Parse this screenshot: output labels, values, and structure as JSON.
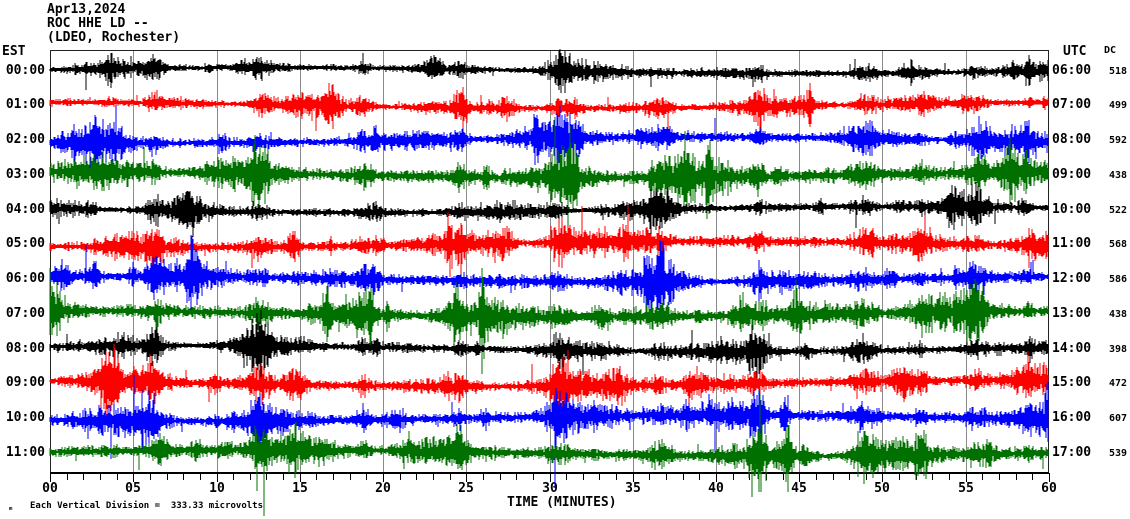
{
  "header": {
    "date": "Apr13,2024",
    "station": "ROC HHE LD --",
    "network": "(LDEO, Rochester)"
  },
  "axes": {
    "left_header": "EST",
    "right_header": "UTC",
    "dc_header": "DC",
    "xlabel": "TIME (MINUTES)"
  },
  "footer": {
    "glyph": "ₘ",
    "scale_note": "Each Vertical Division =  333.33 microvolts"
  },
  "chart_data": {
    "type": "helicorder-seismogram",
    "title": "Apr13,2024",
    "station": "ROC HHE LD --",
    "location": "(LDEO, Rochester)",
    "xlabel": "TIME (MINUTES)",
    "x_range_minutes": [
      0,
      60
    ],
    "x_ticks": [
      {
        "m": 0,
        "label": "00"
      },
      {
        "m": 5,
        "label": "05"
      },
      {
        "m": 10,
        "label": "10"
      },
      {
        "m": 15,
        "label": "15"
      },
      {
        "m": 20,
        "label": "20"
      },
      {
        "m": 25,
        "label": "25"
      },
      {
        "m": 30,
        "label": "30"
      },
      {
        "m": 35,
        "label": "35"
      },
      {
        "m": 40,
        "label": "40"
      },
      {
        "m": 45,
        "label": "45"
      },
      {
        "m": 50,
        "label": "50"
      },
      {
        "m": 55,
        "label": "55"
      },
      {
        "m": 60,
        "label": "60"
      }
    ],
    "vertical_division_microvolts": 333.33,
    "left_timezone": "EST",
    "right_timezone": "UTC",
    "grid_color": "#8a8a8a",
    "border_color": "#222222",
    "row_color_cycle": [
      "#000000",
      "#ff0000",
      "#0000ff",
      "#007000"
    ],
    "rows": [
      {
        "est": "00:00",
        "utc": "06:00",
        "dc": "518",
        "color": "#000000",
        "amp": 8,
        "seed": 101
      },
      {
        "est": "01:00",
        "utc": "07:00",
        "dc": "499",
        "color": "#ff0000",
        "amp": 9,
        "seed": 102
      },
      {
        "est": "02:00",
        "utc": "08:00",
        "dc": "592",
        "color": "#0000ff",
        "amp": 11,
        "seed": 103
      },
      {
        "est": "03:00",
        "utc": "09:00",
        "dc": "438",
        "color": "#007000",
        "amp": 15,
        "seed": 104
      },
      {
        "est": "04:00",
        "utc": "10:00",
        "dc": "522",
        "color": "#000000",
        "amp": 9,
        "seed": 105
      },
      {
        "est": "05:00",
        "utc": "11:00",
        "dc": "568",
        "color": "#ff0000",
        "amp": 12,
        "seed": 106
      },
      {
        "est": "06:00",
        "utc": "12:00",
        "dc": "586",
        "color": "#0000ff",
        "amp": 12,
        "seed": 107
      },
      {
        "est": "07:00",
        "utc": "13:00",
        "dc": "438",
        "color": "#007000",
        "amp": 15,
        "seed": 108
      },
      {
        "est": "08:00",
        "utc": "14:00",
        "dc": "398",
        "color": "#000000",
        "amp": 10,
        "seed": 109
      },
      {
        "est": "09:00",
        "utc": "15:00",
        "dc": "472",
        "color": "#ff0000",
        "amp": 12,
        "seed": 110
      },
      {
        "est": "10:00",
        "utc": "16:00",
        "dc": "607",
        "color": "#0000ff",
        "amp": 13,
        "seed": 111
      },
      {
        "est": "11:00",
        "utc": "17:00",
        "dc": "539",
        "color": "#007000",
        "amp": 14,
        "seed": 112
      }
    ],
    "global_bursts": [
      {
        "m": 6.3,
        "w": 1.2,
        "g": 2.4
      },
      {
        "m": 12.6,
        "w": 1.5,
        "g": 2.6
      },
      {
        "m": 18.8,
        "w": 1.2,
        "g": 2.3
      },
      {
        "m": 24.6,
        "w": 1.0,
        "g": 2.2
      },
      {
        "m": 30.6,
        "w": 1.6,
        "g": 2.5
      },
      {
        "m": 36.6,
        "w": 1.8,
        "g": 2.7
      },
      {
        "m": 42.6,
        "w": 1.2,
        "g": 2.3
      },
      {
        "m": 48.9,
        "w": 1.8,
        "g": 2.8
      },
      {
        "m": 52.3,
        "w": 1.0,
        "g": 2.2
      },
      {
        "m": 55.6,
        "w": 1.6,
        "g": 2.6
      },
      {
        "m": 58.8,
        "w": 0.8,
        "g": 2.0
      }
    ]
  }
}
